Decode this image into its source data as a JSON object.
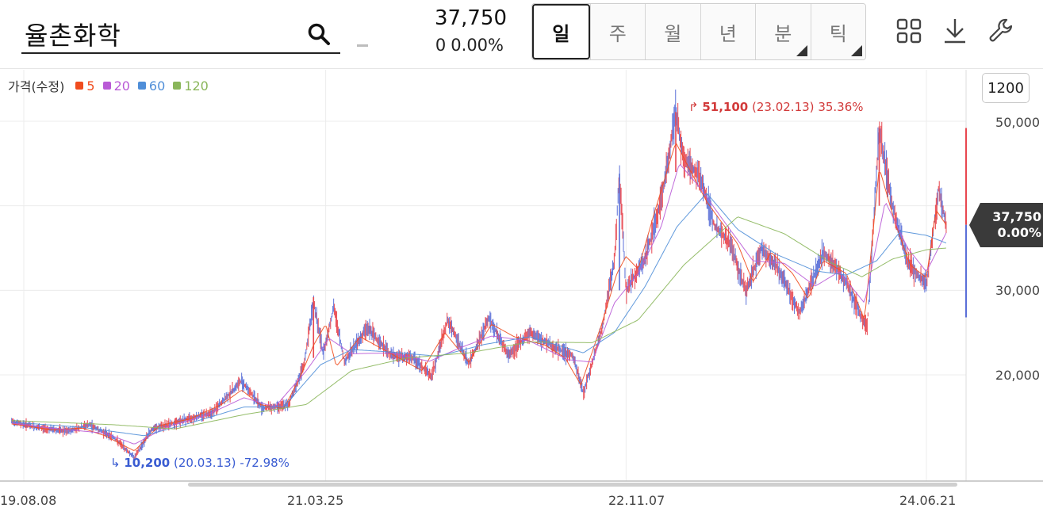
{
  "header": {
    "stock_name": "율촌화학",
    "price": "37,750",
    "change_value": "0",
    "change_pct": "0.00%"
  },
  "tabs": [
    {
      "label": "일",
      "active": true,
      "has_menu": false
    },
    {
      "label": "주",
      "active": false,
      "has_menu": false
    },
    {
      "label": "월",
      "active": false,
      "has_menu": false
    },
    {
      "label": "년",
      "active": false,
      "has_menu": false
    },
    {
      "label": "분",
      "active": false,
      "has_menu": true
    },
    {
      "label": "틱",
      "active": false,
      "has_menu": true
    }
  ],
  "toolbar": {
    "icons": [
      "grid-icon",
      "download-icon",
      "wrench-icon"
    ]
  },
  "legend": {
    "title": "가격(수정)",
    "items": [
      {
        "label": "5",
        "color": "#f04c1e"
      },
      {
        "label": "20",
        "color": "#b95ad6"
      },
      {
        "label": "60",
        "color": "#4f8ed8"
      },
      {
        "label": "120",
        "color": "#8ab65a"
      }
    ]
  },
  "zoom_label": "1200",
  "current_tag": {
    "price": "37,750",
    "pct": "0.00%"
  },
  "high_marker": {
    "price": "51,100",
    "date": "(23.02.13)",
    "pct": "35.36%"
  },
  "low_marker": {
    "price": "10,200",
    "date": "(20.03.13)",
    "pct": "-72.98%"
  },
  "chart_data": {
    "type": "line",
    "y_ticks": [
      "50,000",
      "30,000",
      "20,000"
    ],
    "x_ticks": [
      "19.08.08",
      "21.03.25",
      "22.11.07",
      "24.06.21"
    ],
    "ylim": [
      10000,
      54000
    ],
    "x_range": [
      "2019-07-15",
      "2024-07-30"
    ],
    "grid": true,
    "series": [
      {
        "label": "5",
        "color": "#f04c1e",
        "points": [
          [
            "2019-07-15",
            14200
          ],
          [
            "2019-08-08",
            14000
          ],
          [
            "2019-10-01",
            13500
          ],
          [
            "2019-12-01",
            13700
          ],
          [
            "2020-01-15",
            12800
          ],
          [
            "2020-03-13",
            11000
          ],
          [
            "2020-05-01",
            14000
          ],
          [
            "2020-07-01",
            14800
          ],
          [
            "2020-09-01",
            16500
          ],
          [
            "2020-10-10",
            18200
          ],
          [
            "2020-11-15",
            16500
          ],
          [
            "2021-01-01",
            16000
          ],
          [
            "2021-02-01",
            19500
          ],
          [
            "2021-03-01",
            23500
          ],
          [
            "2021-03-25",
            26000
          ],
          [
            "2021-04-15",
            21000
          ],
          [
            "2021-06-01",
            24500
          ],
          [
            "2021-08-01",
            22500
          ],
          [
            "2021-10-01",
            20500
          ],
          [
            "2021-11-15",
            25000
          ],
          [
            "2022-01-01",
            21500
          ],
          [
            "2022-02-15",
            26000
          ],
          [
            "2022-04-01",
            24500
          ],
          [
            "2022-06-01",
            23500
          ],
          [
            "2022-07-10",
            22000
          ],
          [
            "2022-08-10",
            18800
          ],
          [
            "2022-09-20",
            26000
          ],
          [
            "2022-10-20",
            32000
          ],
          [
            "2022-11-07",
            34000
          ],
          [
            "2022-12-01",
            32500
          ],
          [
            "2023-01-01",
            39000
          ],
          [
            "2023-02-13",
            47500
          ],
          [
            "2023-03-15",
            44000
          ],
          [
            "2023-04-15",
            40500
          ],
          [
            "2023-05-15",
            38000
          ],
          [
            "2023-06-15",
            35500
          ],
          [
            "2023-07-15",
            31000
          ],
          [
            "2023-08-20",
            34500
          ],
          [
            "2023-10-01",
            32000
          ],
          [
            "2023-11-01",
            29000
          ],
          [
            "2023-12-01",
            33500
          ],
          [
            "2024-01-15",
            32000
          ],
          [
            "2024-02-20",
            26500
          ],
          [
            "2024-03-20",
            44500
          ],
          [
            "2024-04-20",
            38000
          ],
          [
            "2024-05-20",
            33000
          ],
          [
            "2024-06-21",
            31500
          ],
          [
            "2024-07-10",
            39500
          ],
          [
            "2024-07-30",
            37750
          ]
        ]
      },
      {
        "label": "20",
        "color": "#b95ad6",
        "points": [
          [
            "2019-07-15",
            14300
          ],
          [
            "2019-10-01",
            13700
          ],
          [
            "2020-01-15",
            13100
          ],
          [
            "2020-03-13",
            11800
          ],
          [
            "2020-05-15",
            13800
          ],
          [
            "2020-08-01",
            15200
          ],
          [
            "2020-10-15",
            17300
          ],
          [
            "2020-12-15",
            16200
          ],
          [
            "2021-02-15",
            20500
          ],
          [
            "2021-04-01",
            24300
          ],
          [
            "2021-05-15",
            22500
          ],
          [
            "2021-08-01",
            22600
          ],
          [
            "2021-10-15",
            21600
          ],
          [
            "2021-12-15",
            23200
          ],
          [
            "2022-02-15",
            24600
          ],
          [
            "2022-05-01",
            24000
          ],
          [
            "2022-07-15",
            21800
          ],
          [
            "2022-09-01",
            21500
          ],
          [
            "2022-10-15",
            28500
          ],
          [
            "2022-12-01",
            32000
          ],
          [
            "2023-01-15",
            37500
          ],
          [
            "2023-02-20",
            45000
          ],
          [
            "2023-04-01",
            42200
          ],
          [
            "2023-05-15",
            38500
          ],
          [
            "2023-07-15",
            33500
          ],
          [
            "2023-09-15",
            33200
          ],
          [
            "2023-11-15",
            30500
          ],
          [
            "2024-01-01",
            32200
          ],
          [
            "2024-02-20",
            28500
          ],
          [
            "2024-04-01",
            40500
          ],
          [
            "2024-05-15",
            35000
          ],
          [
            "2024-06-21",
            32200
          ],
          [
            "2024-07-30",
            36800
          ]
        ]
      },
      {
        "label": "60",
        "color": "#4f8ed8",
        "points": [
          [
            "2019-07-15",
            14400
          ],
          [
            "2019-12-01",
            13800
          ],
          [
            "2020-04-01",
            12800
          ],
          [
            "2020-07-01",
            14300
          ],
          [
            "2020-10-15",
            16200
          ],
          [
            "2021-01-01",
            16200
          ],
          [
            "2021-03-15",
            21200
          ],
          [
            "2021-05-15",
            23000
          ],
          [
            "2021-08-01",
            22700
          ],
          [
            "2021-11-01",
            22200
          ],
          [
            "2022-02-01",
            23600
          ],
          [
            "2022-05-01",
            24500
          ],
          [
            "2022-08-15",
            22600
          ],
          [
            "2022-10-15",
            25000
          ],
          [
            "2022-12-15",
            30500
          ],
          [
            "2023-02-15",
            37500
          ],
          [
            "2023-04-15",
            41500
          ],
          [
            "2023-06-15",
            37200
          ],
          [
            "2023-09-01",
            34200
          ],
          [
            "2023-11-15",
            32300
          ],
          [
            "2024-01-15",
            31800
          ],
          [
            "2024-03-15",
            33500
          ],
          [
            "2024-05-01",
            37000
          ],
          [
            "2024-06-21",
            36500
          ],
          [
            "2024-07-30",
            35600
          ]
        ]
      },
      {
        "label": "120",
        "color": "#8ab65a",
        "points": [
          [
            "2019-07-15",
            14600
          ],
          [
            "2020-02-01",
            14100
          ],
          [
            "2020-06-01",
            13600
          ],
          [
            "2020-10-15",
            15300
          ],
          [
            "2021-02-15",
            16500
          ],
          [
            "2021-05-15",
            20500
          ],
          [
            "2021-09-01",
            22000
          ],
          [
            "2022-01-01",
            22600
          ],
          [
            "2022-05-01",
            23900
          ],
          [
            "2022-09-01",
            23800
          ],
          [
            "2022-12-01",
            26500
          ],
          [
            "2023-03-01",
            33000
          ],
          [
            "2023-06-15",
            38700
          ],
          [
            "2023-09-15",
            36700
          ],
          [
            "2023-12-15",
            33300
          ],
          [
            "2024-02-15",
            31600
          ],
          [
            "2024-04-15",
            33700
          ],
          [
            "2024-06-21",
            34800
          ],
          [
            "2024-07-30",
            35000
          ]
        ]
      }
    ],
    "price_envelope": [
      [
        "2019-07-15",
        14500
      ],
      [
        "2019-09-01",
        13800
      ],
      [
        "2019-11-01",
        13300
      ],
      [
        "2019-12-15",
        14100
      ],
      [
        "2020-02-01",
        12600
      ],
      [
        "2020-03-13",
        10200
      ],
      [
        "2020-04-15",
        13500
      ],
      [
        "2020-06-15",
        14600
      ],
      [
        "2020-08-15",
        15600
      ],
      [
        "2020-10-10",
        19300
      ],
      [
        "2020-11-20",
        16100
      ],
      [
        "2021-01-10",
        16400
      ],
      [
        "2021-02-10",
        21000
      ],
      [
        "2021-03-01",
        28700
      ],
      [
        "2021-03-20",
        22500
      ],
      [
        "2021-04-10",
        28000
      ],
      [
        "2021-05-01",
        21500
      ],
      [
        "2021-06-15",
        25600
      ],
      [
        "2021-08-01",
        22300
      ],
      [
        "2021-09-15",
        21900
      ],
      [
        "2021-10-20",
        19800
      ],
      [
        "2021-11-20",
        26500
      ],
      [
        "2022-01-01",
        21300
      ],
      [
        "2022-02-10",
        26700
      ],
      [
        "2022-03-20",
        22300
      ],
      [
        "2022-05-01",
        25000
      ],
      [
        "2022-06-15",
        23400
      ],
      [
        "2022-07-25",
        22200
      ],
      [
        "2022-08-15",
        17900
      ],
      [
        "2022-09-20",
        25300
      ],
      [
        "2022-10-15",
        33400
      ],
      [
        "2022-10-25",
        43800
      ],
      [
        "2022-11-07",
        30000
      ],
      [
        "2022-12-15",
        33800
      ],
      [
        "2023-01-15",
        40500
      ],
      [
        "2023-02-13",
        51100
      ],
      [
        "2023-03-01",
        45500
      ],
      [
        "2023-04-01",
        43600
      ],
      [
        "2023-05-01",
        37500
      ],
      [
        "2023-06-01",
        35500
      ],
      [
        "2023-07-01",
        29800
      ],
      [
        "2023-08-01",
        35000
      ],
      [
        "2023-09-01",
        32700
      ],
      [
        "2023-10-15",
        27300
      ],
      [
        "2023-12-01",
        34500
      ],
      [
        "2024-01-15",
        31000
      ],
      [
        "2024-02-25",
        25300
      ],
      [
        "2024-03-20",
        49200
      ],
      [
        "2024-04-15",
        40000
      ],
      [
        "2024-05-15",
        33300
      ],
      [
        "2024-06-21",
        30600
      ],
      [
        "2024-07-15",
        42000
      ],
      [
        "2024-07-30",
        37750
      ]
    ]
  }
}
